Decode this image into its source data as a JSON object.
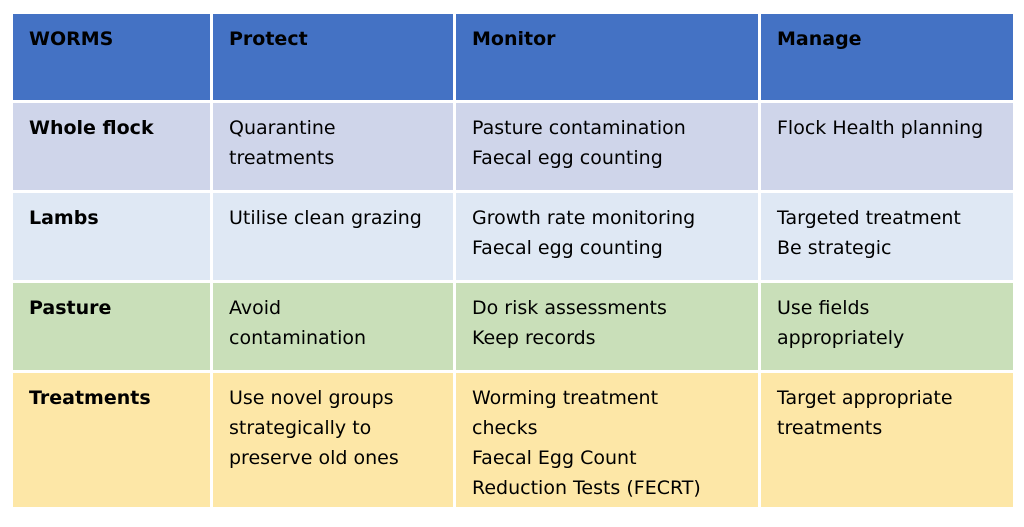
{
  "table": {
    "header": [
      "WORMS",
      "Protect",
      "Monitor",
      "Manage"
    ],
    "rows": [
      [
        [
          "Whole flock"
        ],
        [
          "Quarantine",
          "treatments"
        ],
        [
          "Pasture contamination",
          "Faecal egg counting"
        ],
        [
          "Flock Health planning"
        ]
      ],
      [
        [
          "Lambs"
        ],
        [
          "Utilise clean grazing"
        ],
        [
          "Growth rate monitoring",
          "Faecal egg counting"
        ],
        [
          "Targeted treatment",
          "Be strategic"
        ]
      ],
      [
        [
          "Pasture"
        ],
        [
          "Avoid",
          "contamination"
        ],
        [
          "Do risk assessments",
          "Keep records"
        ],
        [
          "Use fields",
          "appropriately"
        ]
      ],
      [
        [
          "Treatments"
        ],
        [
          "Use novel groups",
          "strategically to",
          "preserve old ones"
        ],
        [
          "Worming treatment",
          "checks",
          "Faecal Egg Count",
          "Reduction Tests (FECRT)"
        ],
        [
          "Target appropriate",
          "treatments"
        ]
      ]
    ]
  }
}
